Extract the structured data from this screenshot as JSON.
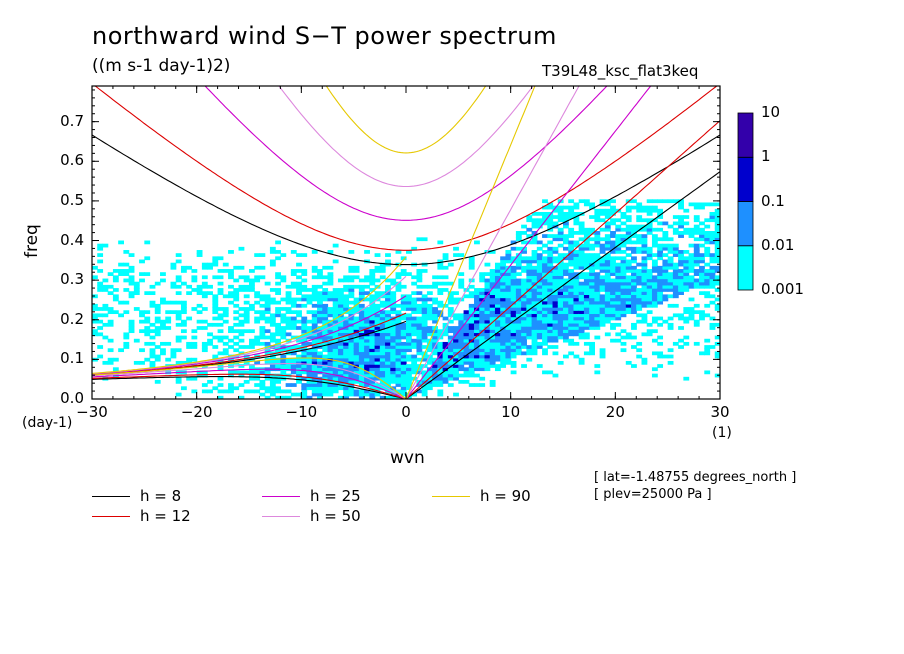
{
  "chart_data": {
    "type": "heatmap",
    "title": "northward wind S−T power spectrum",
    "units": "((m s-1 day-1)2)",
    "run_name": "T39L48_ksc_flat3keq",
    "xlabel": "wvn",
    "ylabel": "freq",
    "x_unit": "(1)",
    "y_unit": "(day-1)",
    "xlim": [
      -30,
      30
    ],
    "ylim": [
      0,
      0.79
    ],
    "x_ticks": [
      -30,
      -20,
      -10,
      0,
      10,
      20,
      30
    ],
    "y_ticks": [
      0.0,
      0.1,
      0.2,
      0.3,
      0.4,
      0.5,
      0.6,
      0.7
    ],
    "x_tick_labels": [
      "−30",
      "−20",
      "−10",
      "0",
      "10",
      "20",
      "30"
    ],
    "y_tick_labels": [
      "0.0",
      "0.1",
      "0.2",
      "0.3",
      "0.4",
      "0.5",
      "0.6",
      "0.7"
    ],
    "colorbar": {
      "levels": [
        "0.001",
        "0.01",
        "0.1",
        "1",
        "10"
      ],
      "colors": [
        "#00ffff",
        "#1e90ff",
        "#0000cd",
        "#3300aa"
      ]
    },
    "dispersion_curves": [
      {
        "name": "h = 8",
        "h": 8,
        "color": "#000000"
      },
      {
        "name": "h = 12",
        "h": 12,
        "color": "#dd0000"
      },
      {
        "name": "h = 25",
        "h": 25,
        "color": "#cc00cc"
      },
      {
        "name": "h = 50",
        "h": 50,
        "color": "#dd88dd"
      },
      {
        "name": "h = 90",
        "h": 90,
        "color": "#e6c800"
      }
    ],
    "annotations": [
      "[ lat=-1.48755 degrees_north ]",
      "[ plev=25000 Pa ]"
    ]
  }
}
